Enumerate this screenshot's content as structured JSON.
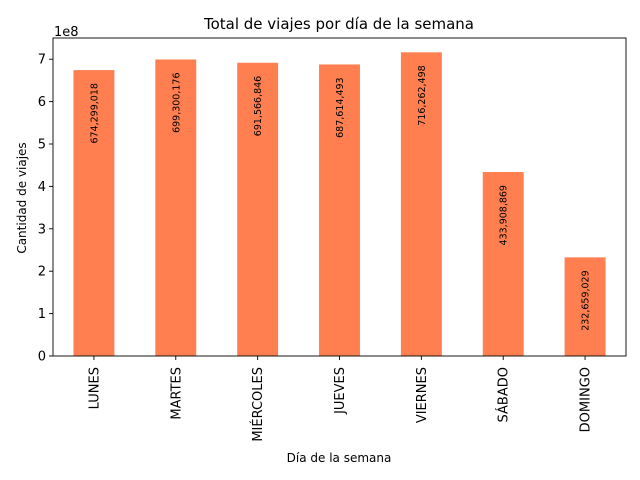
{
  "chart_data": {
    "type": "bar",
    "title": "Total de viajes por día de la semana",
    "xlabel": "Día de la semana",
    "ylabel": "Cantidad de viajes",
    "y_offset_label": "1e8",
    "y_scale": 100000000,
    "ylim": [
      0,
      7.5
    ],
    "yticks": [
      0,
      1,
      2,
      3,
      4,
      5,
      6,
      7
    ],
    "categories": [
      "LUNES",
      "MARTES",
      "MIÉRCOLES",
      "JUEVES",
      "VIERNES",
      "SÁBADO",
      "DOMINGO"
    ],
    "values": [
      674299018,
      699300176,
      691566846,
      687614493,
      716262498,
      433908869,
      232659029
    ],
    "value_labels": [
      "674,299,018",
      "699,300,176",
      "691,566,846",
      "687,614,493",
      "716,262,498",
      "433,908,869",
      "232,659,029"
    ],
    "bar_color": "#ff7f50",
    "grid": false,
    "legend": false
  }
}
